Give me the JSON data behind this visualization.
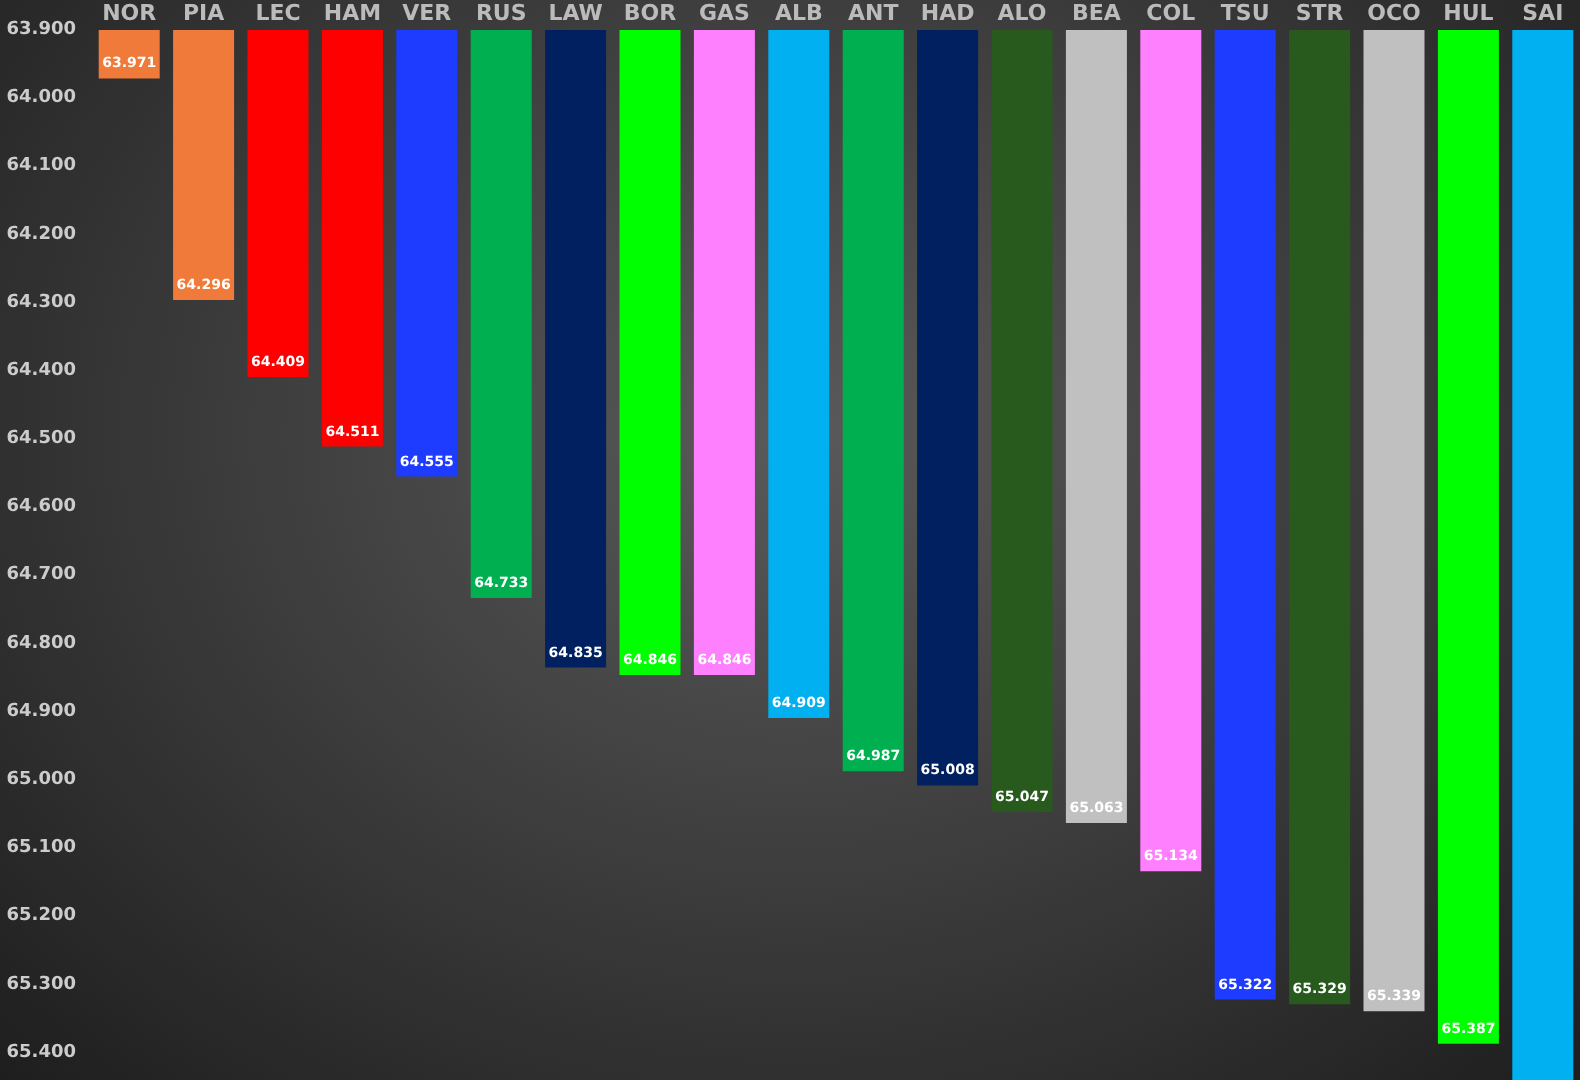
{
  "chart_data": {
    "type": "bar",
    "categories": [
      "NOR",
      "PIA",
      "LEC",
      "HAM",
      "VER",
      "RUS",
      "LAW",
      "BOR",
      "GAS",
      "ALB",
      "ANT",
      "HAD",
      "ALO",
      "BEA",
      "COL",
      "TSU",
      "STR",
      "OCO",
      "HUL",
      "SAI"
    ],
    "values": [
      63.971,
      64.296,
      64.409,
      64.511,
      64.555,
      64.733,
      64.835,
      64.846,
      64.846,
      64.909,
      64.987,
      65.008,
      65.047,
      65.063,
      65.134,
      65.322,
      65.329,
      65.339,
      65.387,
      65.44
    ],
    "value_labels": [
      "63.971",
      "64.296",
      "64.409",
      "64.511",
      "64.555",
      "64.733",
      "64.835",
      "64.846",
      "64.846",
      "64.909",
      "64.987",
      "65.008",
      "65.047",
      "65.063",
      "65.134",
      "65.322",
      "65.329",
      "65.339",
      "65.387",
      null
    ],
    "colors": [
      "#f07a3a",
      "#f07a3a",
      "#ff0000",
      "#ff0000",
      "#1e3cff",
      "#00b050",
      "#002060",
      "#00ff00",
      "#ff80ff",
      "#00b0f0",
      "#00b050",
      "#002060",
      "#285a1e",
      "#c0c0c0",
      "#ff80ff",
      "#1e3cff",
      "#285a1e",
      "#c0c0c0",
      "#00ff00",
      "#00b0f0"
    ],
    "ylim": [
      65.44,
      63.9
    ],
    "yticks": [
      {
        "value": 63.9,
        "label": "63.900"
      },
      {
        "value": 64.0,
        "label": "64.000"
      },
      {
        "value": 64.1,
        "label": "64.100"
      },
      {
        "value": 64.2,
        "label": "64.200"
      },
      {
        "value": 64.3,
        "label": "64.300"
      },
      {
        "value": 64.4,
        "label": "64.400"
      },
      {
        "value": 64.5,
        "label": "64.500"
      },
      {
        "value": 64.6,
        "label": "64.600"
      },
      {
        "value": 64.7,
        "label": "64.700"
      },
      {
        "value": 64.8,
        "label": "64.800"
      },
      {
        "value": 64.9,
        "label": "64.900"
      },
      {
        "value": 65.0,
        "label": "65.000"
      },
      {
        "value": 65.1,
        "label": "65.100"
      },
      {
        "value": 65.2,
        "label": "65.200"
      },
      {
        "value": 65.3,
        "label": "65.300"
      },
      {
        "value": 65.4,
        "label": "65.400"
      }
    ],
    "grid": false
  }
}
